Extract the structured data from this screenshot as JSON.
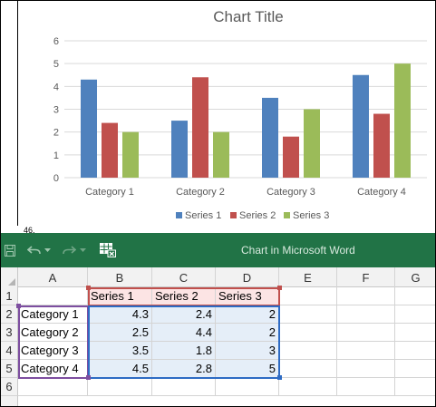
{
  "document": {
    "line_number": "46."
  },
  "chart_data": {
    "type": "bar",
    "title": "Chart Title",
    "categories": [
      "Category 1",
      "Category 2",
      "Category 3",
      "Category 4"
    ],
    "series": [
      {
        "name": "Series 1",
        "values": [
          4.3,
          2.5,
          3.5,
          4.5
        ],
        "color": "#4f81bd"
      },
      {
        "name": "Series 2",
        "values": [
          2.4,
          4.4,
          1.8,
          2.8
        ],
        "color": "#c0504d"
      },
      {
        "name": "Series 3",
        "values": [
          2,
          2,
          3,
          5
        ],
        "color": "#9bbb59"
      }
    ],
    "ylim": [
      0,
      6
    ],
    "yticks": [
      "0",
      "1",
      "2",
      "3",
      "4",
      "5",
      "6"
    ],
    "grid": true,
    "legend": "bottom"
  },
  "excel": {
    "title": "Chart in Microsoft Word",
    "titlebar_color": "#217346",
    "toolbar": {
      "save_icon": "save-icon",
      "undo_icon": "undo-icon",
      "redo_icon": "redo-icon",
      "edit_data_icon": "edit-data-in-excel-icon"
    },
    "columns": [
      "A",
      "B",
      "C",
      "D",
      "E",
      "F",
      "G"
    ],
    "rows": [
      "1",
      "2",
      "3",
      "4",
      "5",
      "6"
    ],
    "sheet": {
      "header": [
        "",
        "Series 1",
        "Series 2",
        "Series 3"
      ],
      "data": [
        [
          "Category 1",
          "4.3",
          "2.4",
          "2"
        ],
        [
          "Category 2",
          "2.5",
          "4.4",
          "2"
        ],
        [
          "Category 3",
          "3.5",
          "1.8",
          "3"
        ],
        [
          "Category 4",
          "4.5",
          "2.8",
          "5"
        ]
      ]
    },
    "range_colors": {
      "category": "#7d4ea0",
      "series": "#c0504d",
      "values": "#2e6bc4"
    }
  }
}
